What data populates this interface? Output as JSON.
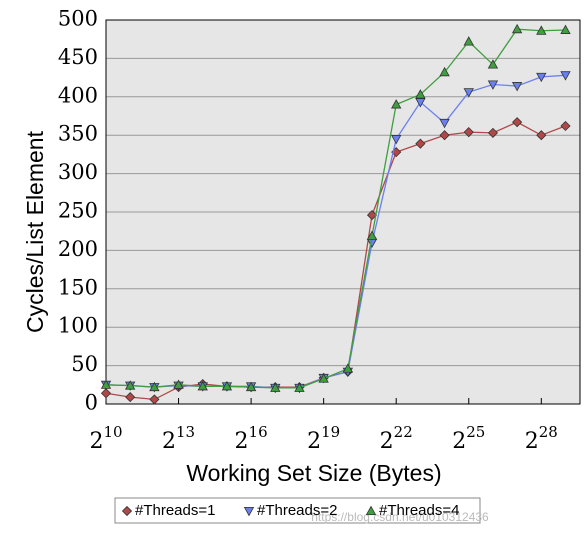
{
  "chart_data": {
    "type": "line",
    "x_label": "Working Set Size (Bytes)",
    "y_label": "Cycles/List Element",
    "log_base": 2,
    "x": [
      10,
      11,
      12,
      13,
      14,
      15,
      16,
      17,
      18,
      19,
      20,
      21,
      22,
      23,
      24,
      25,
      26,
      27,
      28,
      29
    ],
    "series": [
      {
        "name": "#Threads=1",
        "color": "#b04848",
        "marker": "diamond",
        "values": [
          14,
          9,
          6,
          22,
          26,
          23,
          22,
          22,
          22,
          34,
          42,
          246,
          328,
          339,
          350,
          354,
          353,
          367,
          350,
          362
        ]
      },
      {
        "name": "#Threads=2",
        "color": "#6a80ee",
        "marker": "triangle-down",
        "values": [
          25,
          24,
          22,
          24,
          23,
          23,
          23,
          21,
          21,
          34,
          42,
          210,
          345,
          393,
          366,
          406,
          416,
          414,
          426,
          428
        ]
      },
      {
        "name": "#Threads=4",
        "color": "#3f9e3f",
        "marker": "triangle-up",
        "values": [
          25,
          24,
          22,
          25,
          23,
          23,
          22,
          21,
          21,
          33,
          46,
          219,
          390,
          403,
          432,
          472,
          442,
          488,
          486,
          487
        ]
      }
    ],
    "xlim": [
      10,
      29.6
    ],
    "ylim": [
      0,
      500
    ],
    "xticks": [
      10,
      13,
      16,
      19,
      22,
      25,
      28
    ],
    "yticks": [
      0,
      50,
      100,
      150,
      200,
      250,
      300,
      350,
      400,
      450,
      500
    ],
    "grid": true,
    "legend": "bottom",
    "watermark": "https://blog.csdn.net/u010312436"
  }
}
